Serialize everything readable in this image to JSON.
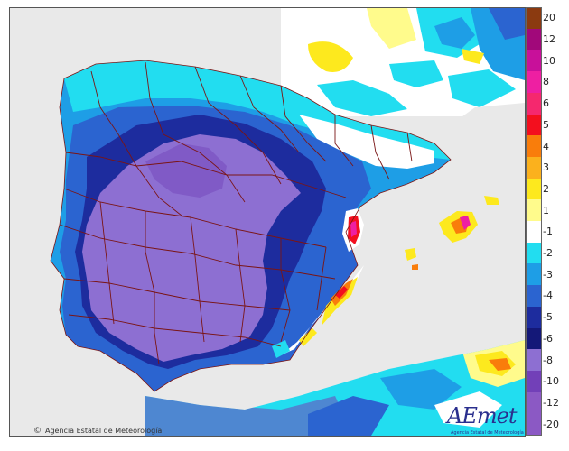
{
  "credit": {
    "symbol": "©",
    "text": "Agencia Estatal de Meteorología"
  },
  "logo": {
    "word": "AEmet",
    "subtitle": "Agencia Estatal de Meteorología"
  },
  "legend": {
    "labels": [
      "20",
      "12",
      "10",
      "8",
      "6",
      "5",
      "4",
      "3",
      "2",
      "1",
      "-1",
      "-2",
      "-3",
      "-4",
      "-5",
      "-6",
      "-8",
      "-10",
      "-12",
      "-20"
    ],
    "classes": [
      {
        "label": "20",
        "color": "#8b3a10"
      },
      {
        "label": "12",
        "color": "#a1087a"
      },
      {
        "label": "10",
        "color": "#c8109a"
      },
      {
        "label": "8",
        "color": "#ee1fa2"
      },
      {
        "label": "6",
        "color": "#f5286e"
      },
      {
        "label": "5",
        "color": "#f30f1e"
      },
      {
        "label": "4",
        "color": "#f97d0b"
      },
      {
        "label": "3",
        "color": "#fbb11d"
      },
      {
        "label": "2",
        "color": "#fde91e"
      },
      {
        "label": "1",
        "color": "#fffb8c"
      },
      {
        "label": "-1",
        "color": "#ffffff"
      },
      {
        "label": "-2",
        "color": "#22ddf0"
      },
      {
        "label": "-3",
        "color": "#1e9ee6"
      },
      {
        "label": "-4",
        "color": "#2b64d0"
      },
      {
        "label": "-5",
        "color": "#1d2c9e"
      },
      {
        "label": "-6",
        "color": "#141878"
      },
      {
        "label": "-8",
        "color": "#8d6fd2"
      },
      {
        "label": "-10",
        "color": "#7240b8"
      },
      {
        "label": "-12",
        "color": "#8b59c4"
      },
      {
        "label": "-20",
        "color": "#8b59c4"
      }
    ]
  },
  "colors": {
    "sea": "#e9e9e9",
    "boundaries": "#7a1515",
    "deep_purple": "#8d6fd2",
    "dark_navy": "#1d2c9e",
    "blue": "#2b64d0",
    "cyan": "#22ddf0",
    "white": "#ffffff",
    "yellow": "#fde91e",
    "orange": "#f97d0b",
    "red": "#f30f1e",
    "magenta": "#ee1fa2"
  }
}
